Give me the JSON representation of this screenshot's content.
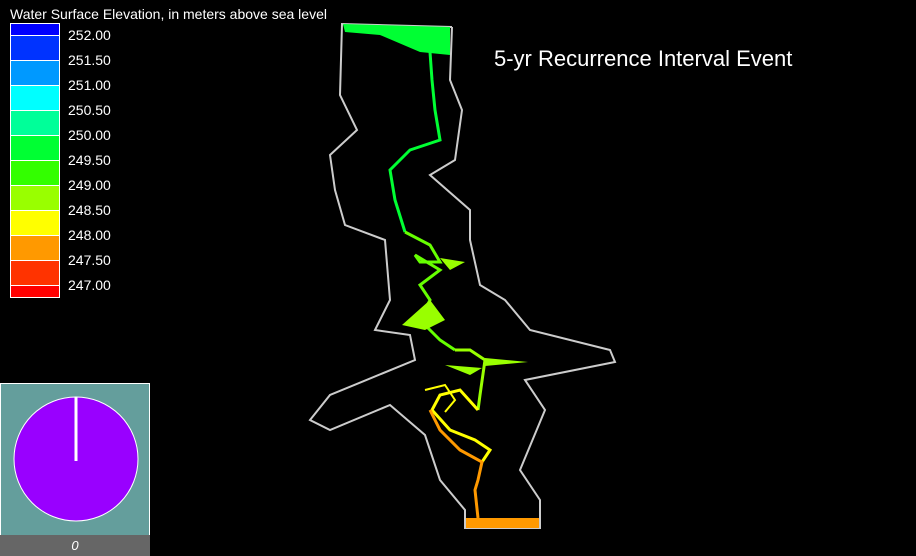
{
  "legend": {
    "title": "Water Surface Elevation, in meters above sea level",
    "labels": [
      "252.00",
      "251.50",
      "251.00",
      "250.50",
      "250.00",
      "249.50",
      "249.00",
      "248.50",
      "248.00",
      "247.50",
      "247.00"
    ],
    "colors": [
      "#0000ff",
      "#0033ff",
      "#0099ff",
      "#00ffff",
      "#00ff99",
      "#00ff33",
      "#33ff00",
      "#99ff00",
      "#ffff00",
      "#ff9900",
      "#ff3300",
      "#ff0000"
    ]
  },
  "event_title": "5-yr Recurrence Interval Event",
  "clock": {
    "readout": "0",
    "face_color": "#9900ff",
    "panel_color": "#649e9c"
  },
  "colors": {
    "boundary": "#cccccc",
    "background": "#000000"
  }
}
